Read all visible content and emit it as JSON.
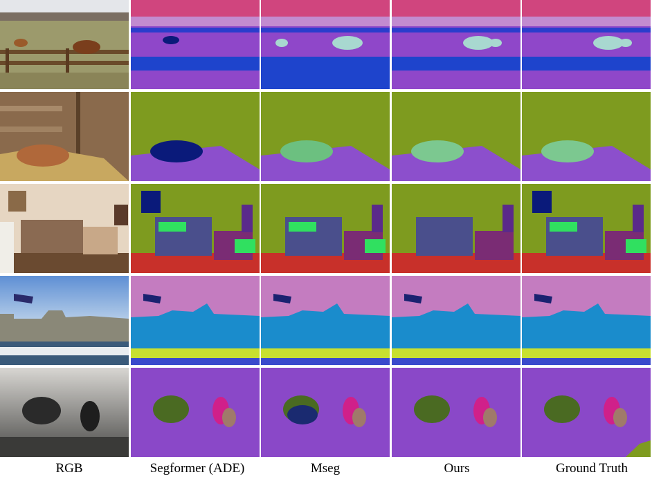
{
  "columns": [
    "RGB",
    "Segformer (ADE)",
    "Mseg",
    "Ours",
    "Ground Truth"
  ]
}
